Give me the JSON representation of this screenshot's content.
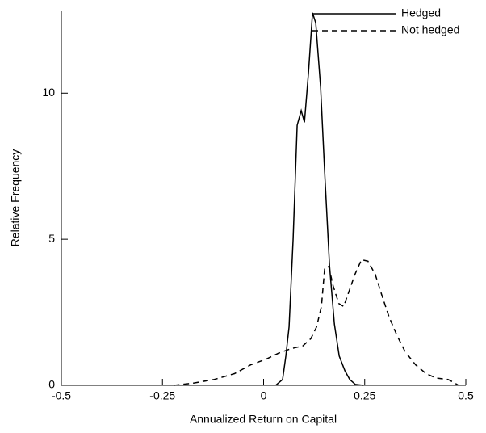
{
  "chart_data": {
    "type": "line",
    "x_label": "Annualized Return on Capital",
    "y_label": "Relative Frequency",
    "xlim": [
      -0.5,
      0.5
    ],
    "xticks": [
      -0.5,
      -0.25,
      0,
      0.25,
      0.5
    ],
    "ylim": [
      0,
      12.8
    ],
    "yticks": [
      0,
      5,
      10
    ],
    "legend": "top-right",
    "series": [
      {
        "name": "Hedged",
        "color": "#000000",
        "dash": "solid",
        "x": [
          0.03,
          0.047,
          0.055,
          0.063,
          0.073,
          0.083,
          0.093,
          0.101,
          0.111,
          0.121,
          0.129,
          0.141,
          0.151,
          0.163,
          0.175,
          0.187,
          0.201,
          0.213,
          0.227,
          0.247
        ],
        "values": [
          0,
          0.2,
          1.0,
          2.0,
          5.0,
          8.9,
          9.4,
          9.0,
          10.7,
          12.75,
          12.4,
          10.2,
          7.3,
          4.1,
          2.1,
          1.0,
          0.5,
          0.2,
          0.03,
          0
        ]
      },
      {
        "name": "Not hedged",
        "color": "#000000",
        "dash": "dashed",
        "x": [
          -0.222,
          -0.172,
          -0.122,
          -0.072,
          -0.032,
          0.007,
          0.037,
          0.067,
          0.097,
          0.117,
          0.131,
          0.143,
          0.151,
          0.161,
          0.172,
          0.186,
          0.198,
          0.212,
          0.226,
          0.242,
          0.258,
          0.276,
          0.292,
          0.31,
          0.33,
          0.35,
          0.376,
          0.402,
          0.426,
          0.456,
          0.47,
          0.482
        ],
        "values": [
          0,
          0.08,
          0.2,
          0.4,
          0.7,
          0.9,
          1.1,
          1.25,
          1.35,
          1.6,
          2.0,
          2.7,
          4.0,
          4.07,
          3.4,
          2.8,
          2.7,
          3.25,
          3.8,
          4.3,
          4.25,
          3.8,
          3.1,
          2.35,
          1.7,
          1.15,
          0.7,
          0.4,
          0.25,
          0.2,
          0.1,
          0
        ]
      }
    ]
  }
}
